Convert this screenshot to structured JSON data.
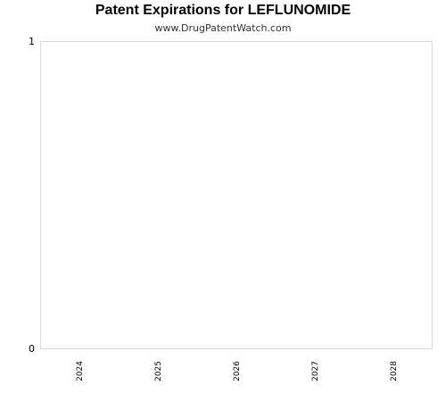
{
  "chart_data": {
    "type": "bar",
    "title": "Patent Expirations for LEFLUNOMIDE",
    "subtitle": "www.DrugPatentWatch.com",
    "categories": [
      "2024",
      "2025",
      "2026",
      "2027",
      "2028"
    ],
    "values": [
      0,
      0,
      0,
      0,
      0
    ],
    "xlabel": "",
    "ylabel": "",
    "ylim": [
      0,
      1
    ],
    "yticks": [
      "0",
      "1"
    ],
    "grid": false,
    "legend": "none",
    "colors": {
      "frame": "#d9d9d9",
      "bar": "#4f81bd"
    }
  }
}
